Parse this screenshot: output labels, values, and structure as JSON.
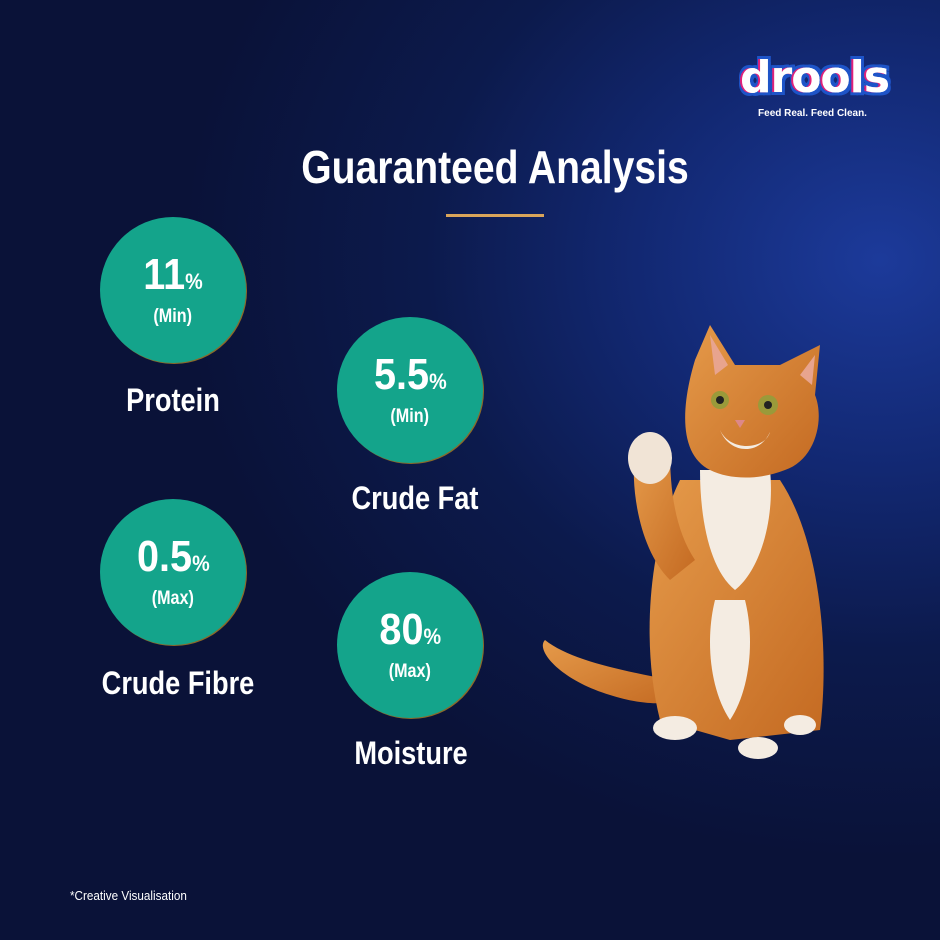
{
  "brand": {
    "logo_text": "drools",
    "tagline": "Feed Real. Feed Clean."
  },
  "title": "Guaranteed Analysis",
  "nutrients": [
    {
      "value": "11",
      "unit": "%",
      "qualifier": "(Min)",
      "label": "Protein"
    },
    {
      "value": "5.5",
      "unit": "%",
      "qualifier": "(Min)",
      "label": "Crude Fat"
    },
    {
      "value": "0.5",
      "unit": "%",
      "qualifier": "(Max)",
      "label": "Crude Fibre"
    },
    {
      "value": "80",
      "unit": "%",
      "qualifier": "(Max)",
      "label": "Moisture"
    }
  ],
  "footnote": "*Creative Visualisation",
  "colors": {
    "circle": "#14a48b",
    "accent_rule": "#d9a55a",
    "background": "#0c1a4c"
  }
}
